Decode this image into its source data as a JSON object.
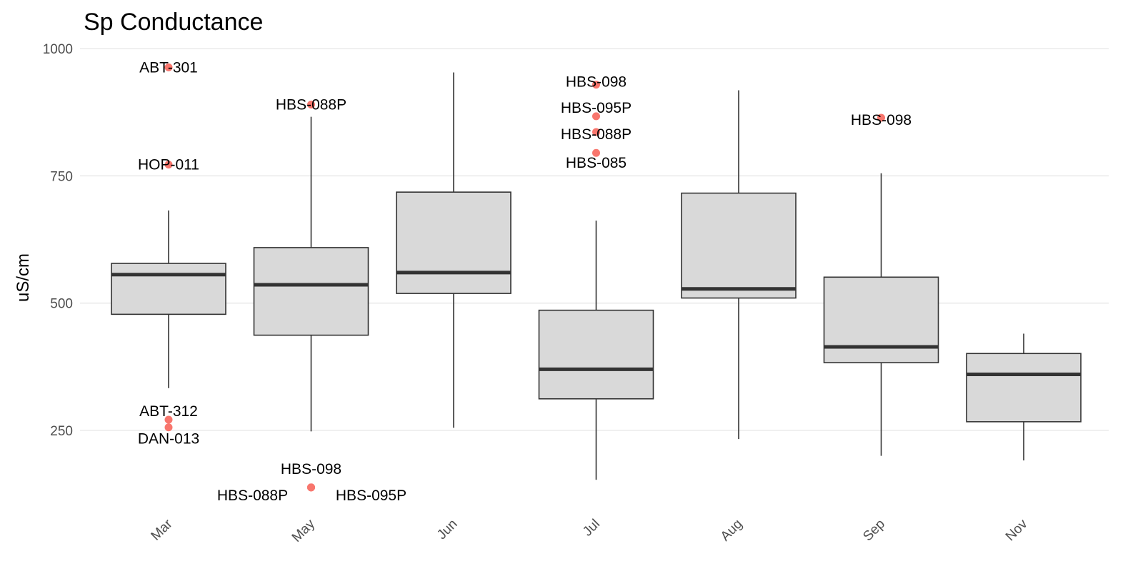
{
  "chart_data": {
    "type": "box",
    "title": "Sp Conductance",
    "xlabel": "",
    "ylabel": "uS/cm",
    "ylim": [
      113,
      1010
    ],
    "y_ticks": [
      250,
      500,
      750,
      1000
    ],
    "grid": true,
    "legend": "none",
    "colors": {
      "box_fill": "#d9d9d9",
      "box_stroke": "#333333",
      "median": "#333333",
      "outlier": "#f8766d",
      "grid": "#ebebeb"
    },
    "categories": [
      "Mar",
      "May",
      "Jun",
      "Jul",
      "Aug",
      "Sep",
      "Nov"
    ],
    "boxes": [
      {
        "category": "Mar",
        "whisker_low": 333,
        "q1": 478,
        "median": 556,
        "q3": 578,
        "whisker_high": 682
      },
      {
        "category": "May",
        "whisker_low": 248,
        "q1": 437,
        "median": 536,
        "q3": 609,
        "whisker_high": 866
      },
      {
        "category": "Jun",
        "whisker_low": 255,
        "q1": 519,
        "median": 560,
        "q3": 718,
        "whisker_high": 953
      },
      {
        "category": "Jul",
        "whisker_low": 153,
        "q1": 312,
        "median": 370,
        "q3": 486,
        "whisker_high": 662
      },
      {
        "category": "Aug",
        "whisker_low": 233,
        "q1": 510,
        "median": 528,
        "q3": 716,
        "whisker_high": 918
      },
      {
        "category": "Sep",
        "whisker_low": 200,
        "q1": 383,
        "median": 414,
        "q3": 551,
        "whisker_high": 755
      },
      {
        "category": "Nov",
        "whisker_low": 191,
        "q1": 267,
        "median": 360,
        "q3": 401,
        "whisker_high": 440
      }
    ],
    "outliers": [
      {
        "category": "Mar",
        "value": 963,
        "label": "ABT-301",
        "label_dx": 0,
        "label_dy": 0
      },
      {
        "category": "Mar",
        "value": 772,
        "label": "HOP-011",
        "label_dx": 0,
        "label_dy": 0
      },
      {
        "category": "Mar",
        "value": 271,
        "label": "ABT-312",
        "label_dx": 0,
        "label_dy": -12
      },
      {
        "category": "Mar",
        "value": 256,
        "label": "DAN-013",
        "label_dx": 0,
        "label_dy": 16
      },
      {
        "category": "May",
        "value": 890,
        "label": "HBS-088P",
        "label_dx": 0,
        "label_dy": 0
      },
      {
        "category": "May",
        "value": 138,
        "label": "HBS-098",
        "label_dx": 0,
        "label_dy": -26
      },
      {
        "category": "May",
        "value": 138,
        "label": "HBS-088P",
        "label_dx": -82,
        "label_dy": 11
      },
      {
        "category": "May",
        "value": 138,
        "label": "HBS-095P",
        "label_dx": 84,
        "label_dy": 11
      },
      {
        "category": "Jul",
        "value": 929,
        "label": "HBS-098",
        "label_dx": 0,
        "label_dy": -4
      },
      {
        "category": "Jul",
        "value": 867,
        "label": "HBS-095P",
        "label_dx": 0,
        "label_dy": -12
      },
      {
        "category": "Jul",
        "value": 836,
        "label": "HBS-088P",
        "label_dx": 0,
        "label_dy": 3
      },
      {
        "category": "Jul",
        "value": 795,
        "label": "HBS-085",
        "label_dx": 0,
        "label_dy": 14
      },
      {
        "category": "Sep",
        "value": 864,
        "label": "HBS-098",
        "label_dx": 0,
        "label_dy": 3
      }
    ]
  }
}
